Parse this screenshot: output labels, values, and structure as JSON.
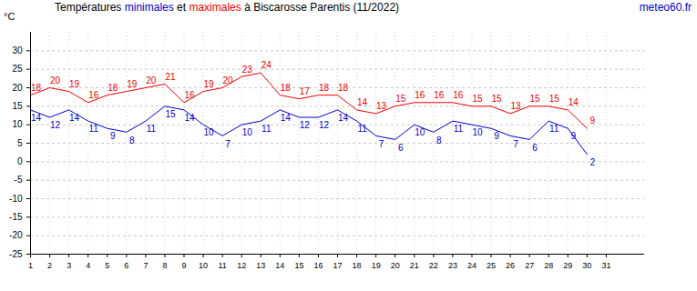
{
  "chart_data": {
    "type": "line",
    "title": "Températures minimales et maximales à Biscarosse Parentis (11/2022)",
    "y_label": "°C",
    "annotations": [
      "meteo60.fr"
    ],
    "x": [
      1,
      2,
      3,
      4,
      5,
      6,
      7,
      8,
      9,
      10,
      11,
      12,
      13,
      14,
      15,
      16,
      17,
      18,
      19,
      20,
      21,
      22,
      23,
      24,
      25,
      26,
      27,
      28,
      29,
      30
    ],
    "series": [
      {
        "name": "minimales",
        "color": "#0000cc",
        "values": [
          14,
          12,
          14,
          11,
          9,
          8,
          11,
          15,
          14,
          10,
          7,
          10,
          11,
          14,
          12,
          12,
          14,
          11,
          7,
          6,
          10,
          8,
          11,
          10,
          9,
          7,
          6,
          11,
          9,
          2
        ]
      },
      {
        "name": "maximales",
        "color": "#ee0000",
        "values": [
          18,
          20,
          19,
          16,
          18,
          19,
          20,
          21,
          16,
          19,
          20,
          23,
          24,
          18,
          17,
          18,
          18,
          14,
          13,
          15,
          16,
          16,
          16,
          15,
          15,
          13,
          15,
          15,
          14,
          9
        ]
      }
    ],
    "xlim": [
      1,
      33
    ],
    "xticks": [
      1,
      2,
      3,
      4,
      5,
      6,
      7,
      8,
      9,
      10,
      11,
      12,
      13,
      14,
      15,
      16,
      17,
      18,
      19,
      20,
      21,
      22,
      23,
      24,
      25,
      26,
      27,
      28,
      29,
      30,
      31
    ],
    "ylim": [
      -25,
      35
    ],
    "yticks": [
      -25,
      -20,
      -15,
      -10,
      -5,
      0,
      5,
      10,
      15,
      20,
      25,
      30
    ],
    "grid": true,
    "data_labels": true
  }
}
